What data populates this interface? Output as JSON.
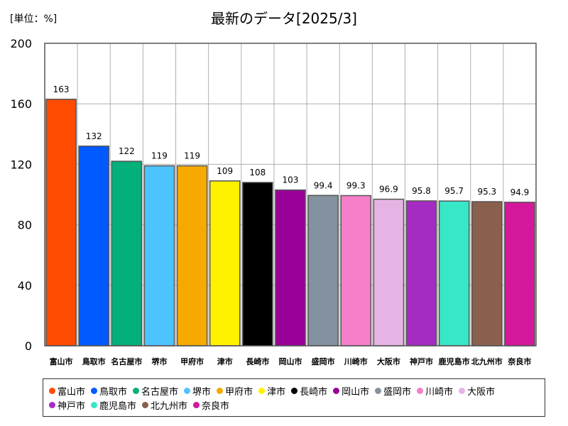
{
  "chart_data": {
    "type": "bar",
    "title": "最新のデータ[2025/3]",
    "unit_label": "[単位：%]",
    "categories": [
      "富山市",
      "鳥取市",
      "名古屋市",
      "堺市",
      "甲府市",
      "津市",
      "長崎市",
      "岡山市",
      "盛岡市",
      "川崎市",
      "大阪市",
      "神戸市",
      "鹿児島市",
      "北九州市",
      "奈良市"
    ],
    "values": [
      163,
      132,
      122,
      119,
      119,
      109,
      108,
      103,
      99.4,
      99.3,
      96.9,
      95.8,
      95.7,
      95.3,
      94.9
    ],
    "value_labels": [
      "163",
      "132",
      "122",
      "119",
      "119",
      "109",
      "108",
      "103",
      "99.4",
      "99.3",
      "96.9",
      "95.8",
      "95.7",
      "95.3",
      "94.9"
    ],
    "colors": [
      "#ff4b00",
      "#005aff",
      "#03af7a",
      "#4dc4ff",
      "#f6aa00",
      "#fff100",
      "#000000",
      "#990099",
      "#84919e",
      "#f47fc8",
      "#e6b4e4",
      "#a52cc3",
      "#38e6c8",
      "#8a5f4d",
      "#d4189b"
    ],
    "ylim": [
      0,
      200
    ],
    "yticks": [
      "0",
      "40",
      "80",
      "120",
      "160",
      "200"
    ],
    "grid": true,
    "legend_position": "bottom"
  }
}
